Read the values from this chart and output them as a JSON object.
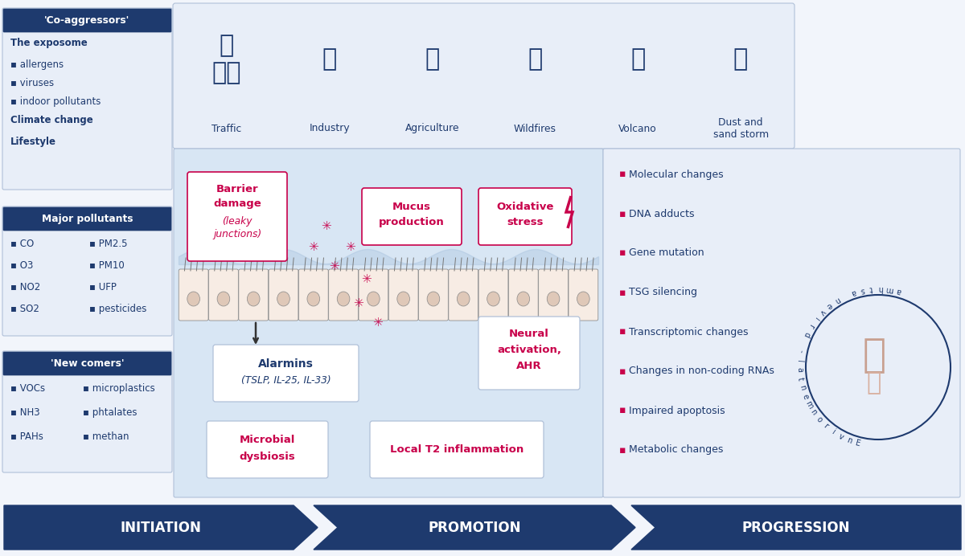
{
  "bg_color": "#f2f5fb",
  "dark_blue": "#1e3a6e",
  "light_blue": "#dce8f5",
  "lighter_blue": "#e8eef8",
  "panel_blue": "#d8e6f4",
  "pink_red": "#c8004a",
  "white": "#ffffff",
  "gray_border": "#b0c0d8",
  "left_box1_title": "'Co-aggressors'",
  "left_box1_lines": [
    [
      "The exposome",
      true
    ],
    [
      "▪ allergens",
      false
    ],
    [
      "▪ viruses",
      false
    ],
    [
      "▪ indoor pollutants",
      false
    ],
    [
      "Climate change",
      true
    ],
    [
      "Lifestyle",
      true
    ]
  ],
  "left_box2_title": "Major pollutants",
  "left_box2_col1": [
    "▪ CO",
    "▪ O3",
    "▪ NO2",
    "▪ SO2"
  ],
  "left_box2_col2": [
    "▪ PM2.5",
    "▪ PM10",
    "▪ UFP",
    "▪ pesticides"
  ],
  "left_box3_title": "'New comers'",
  "left_box3_col1": [
    "▪ VOCs",
    "▪ NH3",
    "▪ PAHs"
  ],
  "left_box3_col2": [
    "▪ microplastics",
    "▪ phtalates",
    "▪ methan"
  ],
  "top_sources": [
    "Traffic",
    "Industry",
    "Agriculture",
    "Wildfires",
    "Volcano",
    "Dust and\nsand storm"
  ],
  "right_bullets": [
    "Molecular changes",
    "DNA adducts",
    "Gene mutation",
    "TSG silencing",
    "Transcriptomic changes",
    "Changes in non-coding RNAs",
    "Impaired apoptosis",
    "Metabolic changes"
  ],
  "right_arc_text": "Environmental- driven asthma",
  "bottom_labels": [
    "INITIATION",
    "PROMOTION",
    "PROGRESSION"
  ]
}
